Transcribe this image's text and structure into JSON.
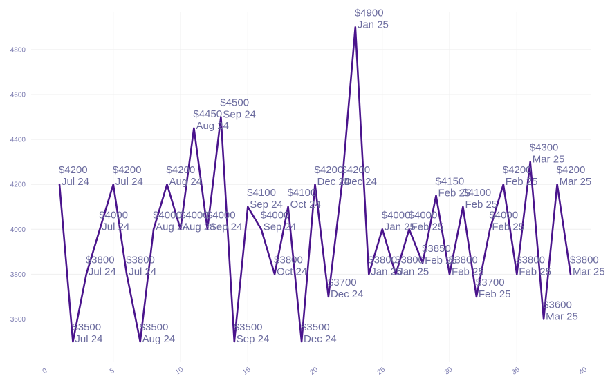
{
  "chart_data": {
    "type": "line",
    "title": "",
    "xlabel": "",
    "ylabel": "",
    "xlim": [
      0,
      40
    ],
    "ylim": [
      3400,
      4950
    ],
    "x_ticks": [
      0,
      5,
      10,
      15,
      20,
      25,
      30,
      35,
      40
    ],
    "y_ticks": [
      3600,
      3800,
      4000,
      4200,
      4400,
      4600,
      4800
    ],
    "grid": true,
    "legend": "none",
    "line_color": "#4a148c",
    "series": [
      {
        "points": [
          {
            "x": 1,
            "y": 4200,
            "value_label": "$4200",
            "month_label": "Jul 24"
          },
          {
            "x": 2,
            "y": 3500,
            "value_label": "$3500",
            "month_label": "Jul 24"
          },
          {
            "x": 3,
            "y": 3800,
            "value_label": "$3800",
            "month_label": "Jul 24"
          },
          {
            "x": 4,
            "y": 4000,
            "value_label": "$4000",
            "month_label": "Jul 24"
          },
          {
            "x": 5,
            "y": 4200,
            "value_label": "$4200",
            "month_label": "Jul 24"
          },
          {
            "x": 6,
            "y": 3800,
            "value_label": "$3800",
            "month_label": "Jul 24"
          },
          {
            "x": 7,
            "y": 3500,
            "value_label": "$3500",
            "month_label": "Aug 24"
          },
          {
            "x": 8,
            "y": 4000,
            "value_label": "$4000",
            "month_label": "Aug 24"
          },
          {
            "x": 9,
            "y": 4200,
            "value_label": "$4200",
            "month_label": "Aug 24"
          },
          {
            "x": 10,
            "y": 4000,
            "value_label": "$4000",
            "month_label": "Aug 24"
          },
          {
            "x": 11,
            "y": 4450,
            "value_label": "$4450",
            "month_label": "Aug 24"
          },
          {
            "x": 12,
            "y": 4000,
            "value_label": "$4000",
            "month_label": "Sep 24"
          },
          {
            "x": 13,
            "y": 4500,
            "value_label": "$4500",
            "month_label": "Sep 24"
          },
          {
            "x": 14,
            "y": 3500,
            "value_label": "$3500",
            "month_label": "Sep 24"
          },
          {
            "x": 15,
            "y": 4100,
            "value_label": "$4100",
            "month_label": "Sep 24"
          },
          {
            "x": 16,
            "y": 4000,
            "value_label": "$4000",
            "month_label": "Sep 24"
          },
          {
            "x": 17,
            "y": 3800,
            "value_label": "$3800",
            "month_label": "Oct 24"
          },
          {
            "x": 18,
            "y": 4100,
            "value_label": "$4100",
            "month_label": "Oct 24"
          },
          {
            "x": 19,
            "y": 3500,
            "value_label": "$3500",
            "month_label": "Dec 24"
          },
          {
            "x": 20,
            "y": 4200,
            "value_label": "$4200",
            "month_label": "Dec 24"
          },
          {
            "x": 21,
            "y": 3700,
            "value_label": "$3700",
            "month_label": "Dec 24"
          },
          {
            "x": 22,
            "y": 4200,
            "value_label": "$4200",
            "month_label": "Dec 24"
          },
          {
            "x": 23,
            "y": 4900,
            "value_label": "$4900",
            "month_label": "Jan 25"
          },
          {
            "x": 24,
            "y": 3800,
            "value_label": "$3800",
            "month_label": "Jan 25"
          },
          {
            "x": 25,
            "y": 4000,
            "value_label": "$4000",
            "month_label": "Jan 25"
          },
          {
            "x": 26,
            "y": 3800,
            "value_label": "$3800",
            "month_label": "Jan 25"
          },
          {
            "x": 27,
            "y": 4000,
            "value_label": "$4000",
            "month_label": "Feb 25"
          },
          {
            "x": 28,
            "y": 3850,
            "value_label": "$3850",
            "month_label": "Feb 25"
          },
          {
            "x": 29,
            "y": 4150,
            "value_label": "$4150",
            "month_label": "Feb 25"
          },
          {
            "x": 30,
            "y": 3800,
            "value_label": "$3800",
            "month_label": "Feb 25"
          },
          {
            "x": 31,
            "y": 4100,
            "value_label": "$4100",
            "month_label": "Feb 25"
          },
          {
            "x": 32,
            "y": 3700,
            "value_label": "$3700",
            "month_label": "Feb 25"
          },
          {
            "x": 33,
            "y": 4000,
            "value_label": "$4000",
            "month_label": "Feb 25"
          },
          {
            "x": 34,
            "y": 4200,
            "value_label": "$4200",
            "month_label": "Feb 25"
          },
          {
            "x": 35,
            "y": 3800,
            "value_label": "$3800",
            "month_label": "Feb 25"
          },
          {
            "x": 36,
            "y": 4300,
            "value_label": "$4300",
            "month_label": "Mar 25"
          },
          {
            "x": 37,
            "y": 3600,
            "value_label": "$3600",
            "month_label": "Mar 25"
          },
          {
            "x": 38,
            "y": 4200,
            "value_label": "$4200",
            "month_label": "Mar 25"
          },
          {
            "x": 39,
            "y": 3800,
            "value_label": "$3800",
            "month_label": "Mar 25"
          }
        ]
      }
    ]
  }
}
